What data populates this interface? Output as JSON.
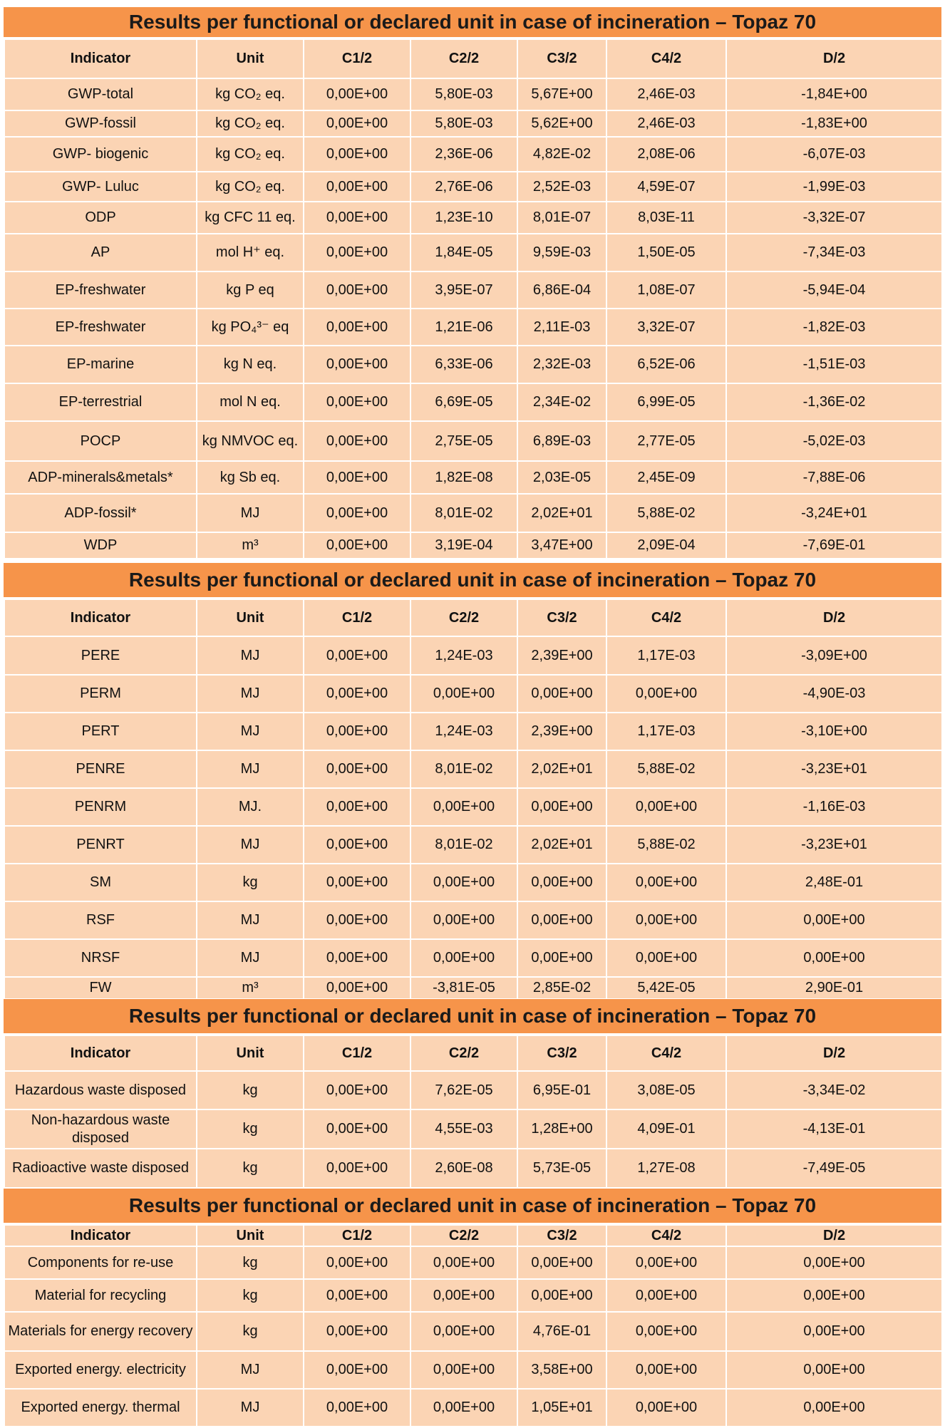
{
  "sections": [
    {
      "title": "Results per functional or declared unit in case of incineration – Topaz 70",
      "headers": [
        "Indicator",
        "Unit",
        "C1/2",
        "C2/2",
        "C3/2",
        "C4/2",
        "D/2"
      ],
      "rows": [
        [
          "GWP-total",
          "kg CO₂ eq.",
          "0,00E+00",
          "5,80E-03",
          "5,67E+00",
          "2,46E-03",
          "-1,84E+00"
        ],
        [
          "GWP-fossil",
          "kg CO₂ eq.",
          "0,00E+00",
          "5,80E-03",
          "5,62E+00",
          "2,46E-03",
          "-1,83E+00"
        ],
        [
          "GWP- biogenic",
          "kg CO₂ eq.",
          "0,00E+00",
          "2,36E-06",
          "4,82E-02",
          "2,08E-06",
          "-6,07E-03"
        ],
        [
          "GWP- Luluc",
          "kg CO₂ eq.",
          "0,00E+00",
          "2,76E-06",
          "2,52E-03",
          "4,59E-07",
          "-1,99E-03"
        ],
        [
          "ODP",
          "kg CFC 11 eq.",
          "0,00E+00",
          "1,23E-10",
          "8,01E-07",
          "8,03E-11",
          "-3,32E-07"
        ],
        [
          "AP",
          "mol H⁺ eq.",
          "0,00E+00",
          "1,84E-05",
          "9,59E-03",
          "1,50E-05",
          "-7,34E-03"
        ],
        [
          "EP-freshwater",
          "kg P eq",
          "0,00E+00",
          "3,95E-07",
          "6,86E-04",
          "1,08E-07",
          "-5,94E-04"
        ],
        [
          "EP-freshwater",
          "kg PO₄³⁻ eq",
          "0,00E+00",
          "1,21E-06",
          "2,11E-03",
          "3,32E-07",
          "-1,82E-03"
        ],
        [
          "EP-marine",
          "kg N eq.",
          "0,00E+00",
          "6,33E-06",
          "2,32E-03",
          "6,52E-06",
          "-1,51E-03"
        ],
        [
          "EP-terrestrial",
          "mol N eq.",
          "0,00E+00",
          "6,69E-05",
          "2,34E-02",
          "6,99E-05",
          "-1,36E-02"
        ],
        [
          "POCP",
          "kg NMVOC eq.",
          "0,00E+00",
          "2,75E-05",
          "6,89E-03",
          "2,77E-05",
          "-5,02E-03"
        ],
        [
          "ADP-minerals&metals*",
          "kg Sb eq.",
          "0,00E+00",
          "1,82E-08",
          "2,03E-05",
          "2,45E-09",
          "-7,88E-06"
        ],
        [
          "ADP-fossil*",
          "MJ",
          "0,00E+00",
          "8,01E-02",
          "2,02E+01",
          "5,88E-02",
          "-3,24E+01"
        ],
        [
          "WDP",
          "m³",
          "0,00E+00",
          "3,19E-04",
          "3,47E+00",
          "2,09E-04",
          "-7,69E-01"
        ]
      ]
    },
    {
      "title": "Results per functional or declared unit in case of incineration –  Topaz 70",
      "headers": [
        "Indicator",
        "Unit",
        "C1/2",
        "C2/2",
        "C3/2",
        "C4/2",
        "D/2"
      ],
      "rows": [
        [
          "PERE",
          "MJ",
          "0,00E+00",
          "1,24E-03",
          "2,39E+00",
          "1,17E-03",
          "-3,09E+00"
        ],
        [
          "PERM",
          "MJ",
          "0,00E+00",
          "0,00E+00",
          "0,00E+00",
          "0,00E+00",
          "-4,90E-03"
        ],
        [
          "PERT",
          "MJ",
          "0,00E+00",
          "1,24E-03",
          "2,39E+00",
          "1,17E-03",
          "-3,10E+00"
        ],
        [
          "PENRE",
          "MJ",
          "0,00E+00",
          "8,01E-02",
          "2,02E+01",
          "5,88E-02",
          "-3,23E+01"
        ],
        [
          "PENRM",
          "MJ.",
          "0,00E+00",
          "0,00E+00",
          "0,00E+00",
          "0,00E+00",
          "-1,16E-03"
        ],
        [
          "PENRT",
          "MJ",
          "0,00E+00",
          "8,01E-02",
          "2,02E+01",
          "5,88E-02",
          "-3,23E+01"
        ],
        [
          "SM",
          "kg",
          "0,00E+00",
          "0,00E+00",
          "0,00E+00",
          "0,00E+00",
          "2,48E-01"
        ],
        [
          "RSF",
          "MJ",
          "0,00E+00",
          "0,00E+00",
          "0,00E+00",
          "0,00E+00",
          "0,00E+00"
        ],
        [
          "NRSF",
          "MJ",
          "0,00E+00",
          "0,00E+00",
          "0,00E+00",
          "0,00E+00",
          "0,00E+00"
        ],
        [
          "FW",
          "m³",
          "0,00E+00",
          "-3,81E-05",
          "2,85E-02",
          "5,42E-05",
          "2,90E-01"
        ]
      ]
    },
    {
      "title": "Results per functional or declared unit in case of incineration –  Topaz 70",
      "headers": [
        "Indicator",
        "Unit",
        "C1/2",
        "C2/2",
        "C3/2",
        "C4/2",
        "D/2"
      ],
      "rows": [
        [
          "Hazardous waste disposed",
          "kg",
          "0,00E+00",
          "7,62E-05",
          "6,95E-01",
          "3,08E-05",
          "-3,34E-02"
        ],
        [
          "Non-hazardous waste disposed",
          "kg",
          "0,00E+00",
          "4,55E-03",
          "1,28E+00",
          "4,09E-01",
          "-4,13E-01"
        ],
        [
          "Radioactive waste disposed",
          "kg",
          "0,00E+00",
          "2,60E-08",
          "5,73E-05",
          "1,27E-08",
          "-7,49E-05"
        ]
      ]
    },
    {
      "title": "Results per functional or declared unit in case of incineration –  Topaz 70",
      "headers": [
        "Indicator",
        "Unit",
        "C1/2",
        "C2/2",
        "C3/2",
        "C4/2",
        "D/2"
      ],
      "rows": [
        [
          "Components for re-use",
          "kg",
          "0,00E+00",
          "0,00E+00",
          "0,00E+00",
          "0,00E+00",
          "0,00E+00"
        ],
        [
          "Material for recycling",
          "kg",
          "0,00E+00",
          "0,00E+00",
          "0,00E+00",
          "0,00E+00",
          "0,00E+00"
        ],
        [
          "Materials for energy recovery",
          "kg",
          "0,00E+00",
          "0,00E+00",
          "4,76E-01",
          "0,00E+00",
          "0,00E+00"
        ],
        [
          "Exported energy. electricity",
          "MJ",
          "0,00E+00",
          "0,00E+00",
          "3,58E+00",
          "0,00E+00",
          "0,00E+00"
        ],
        [
          "Exported energy. thermal",
          "MJ",
          "0,00E+00",
          "0,00E+00",
          "1,05E+01",
          "0,00E+00",
          "0,00E+00"
        ]
      ]
    }
  ]
}
